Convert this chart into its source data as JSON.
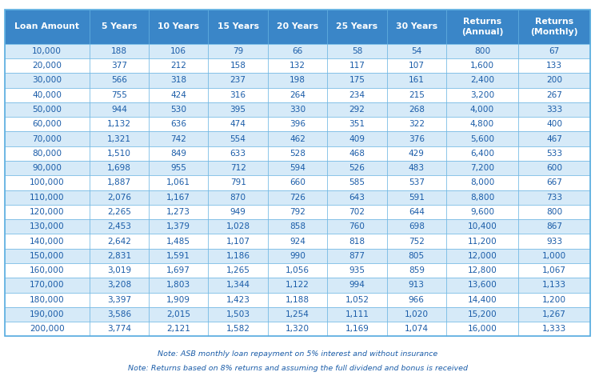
{
  "headers": [
    "Loan Amount",
    "5 Years",
    "10 Years",
    "15 Years",
    "20 Years",
    "25 Years",
    "30 Years",
    "Returns\n(Annual)",
    "Returns\n(Monthly)"
  ],
  "rows": [
    [
      "10,000",
      "188",
      "106",
      "79",
      "66",
      "58",
      "54",
      "800",
      "67"
    ],
    [
      "20,000",
      "377",
      "212",
      "158",
      "132",
      "117",
      "107",
      "1,600",
      "133"
    ],
    [
      "30,000",
      "566",
      "318",
      "237",
      "198",
      "175",
      "161",
      "2,400",
      "200"
    ],
    [
      "40,000",
      "755",
      "424",
      "316",
      "264",
      "234",
      "215",
      "3,200",
      "267"
    ],
    [
      "50,000",
      "944",
      "530",
      "395",
      "330",
      "292",
      "268",
      "4,000",
      "333"
    ],
    [
      "60,000",
      "1,132",
      "636",
      "474",
      "396",
      "351",
      "322",
      "4,800",
      "400"
    ],
    [
      "70,000",
      "1,321",
      "742",
      "554",
      "462",
      "409",
      "376",
      "5,600",
      "467"
    ],
    [
      "80,000",
      "1,510",
      "849",
      "633",
      "528",
      "468",
      "429",
      "6,400",
      "533"
    ],
    [
      "90,000",
      "1,698",
      "955",
      "712",
      "594",
      "526",
      "483",
      "7,200",
      "600"
    ],
    [
      "100,000",
      "1,887",
      "1,061",
      "791",
      "660",
      "585",
      "537",
      "8,000",
      "667"
    ],
    [
      "110,000",
      "2,076",
      "1,167",
      "870",
      "726",
      "643",
      "591",
      "8,800",
      "733"
    ],
    [
      "120,000",
      "2,265",
      "1,273",
      "949",
      "792",
      "702",
      "644",
      "9,600",
      "800"
    ],
    [
      "130,000",
      "2,453",
      "1,379",
      "1,028",
      "858",
      "760",
      "698",
      "10,400",
      "867"
    ],
    [
      "140,000",
      "2,642",
      "1,485",
      "1,107",
      "924",
      "818",
      "752",
      "11,200",
      "933"
    ],
    [
      "150,000",
      "2,831",
      "1,591",
      "1,186",
      "990",
      "877",
      "805",
      "12,000",
      "1,000"
    ],
    [
      "160,000",
      "3,019",
      "1,697",
      "1,265",
      "1,056",
      "935",
      "859",
      "12,800",
      "1,067"
    ],
    [
      "170,000",
      "3,208",
      "1,803",
      "1,344",
      "1,122",
      "994",
      "913",
      "13,600",
      "1,133"
    ],
    [
      "180,000",
      "3,397",
      "1,909",
      "1,423",
      "1,188",
      "1,052",
      "966",
      "14,400",
      "1,200"
    ],
    [
      "190,000",
      "3,586",
      "2,015",
      "1,503",
      "1,254",
      "1,111",
      "1,020",
      "15,200",
      "1,267"
    ],
    [
      "200,000",
      "3,774",
      "2,121",
      "1,582",
      "1,320",
      "1,169",
      "1,074",
      "16,000",
      "1,333"
    ]
  ],
  "header_bg": "#3A86C8",
  "header_text": "#FFFFFF",
  "row_bg_odd": "#D6EAF8",
  "row_bg_even": "#FFFFFF",
  "row_text": "#1A5CA8",
  "border_color": "#5BAEE0",
  "note1": "Note: ASB monthly loan repayment on 5% interest and without insurance",
  "note2": "Note: Returns based on 8% returns and assuming the full dividend and bonus is received",
  "col_widths": [
    1.35,
    0.95,
    0.95,
    0.95,
    0.95,
    0.95,
    0.95,
    1.15,
    1.15
  ]
}
